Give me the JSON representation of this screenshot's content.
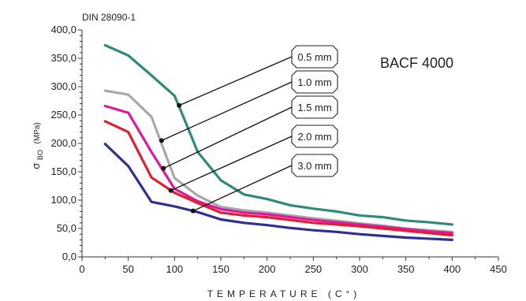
{
  "chart_data": {
    "type": "line",
    "title": "",
    "standard": "DIN 28090-1",
    "product": "BACF 4000",
    "xlabel": "TEMPERATURE (C°)",
    "ylabel": {
      "symbol": "σ",
      "subscript": "BO",
      "unit": "(MPa)"
    },
    "xlim": [
      0,
      450
    ],
    "ylim": [
      0,
      400
    ],
    "xticks": [
      "0",
      "50",
      "100",
      "150",
      "200",
      "250",
      "300",
      "350",
      "400",
      "450"
    ],
    "yticks": [
      "0,0",
      "50,0",
      "100,0",
      "150,0",
      "200,0",
      "250,0",
      "300,0",
      "350,0",
      "400,0"
    ],
    "grid": false,
    "legend": "annotations",
    "series": [
      {
        "name": "0.5 mm",
        "color": "#2f8a7a",
        "x": [
          25,
          50,
          75,
          100,
          110,
          125,
          150,
          175,
          200,
          225,
          250,
          275,
          300,
          325,
          350,
          375,
          400
        ],
        "y": [
          373,
          355,
          320,
          284,
          245,
          185,
          135,
          110,
          102,
          91,
          85,
          80,
          73,
          70,
          64,
          61,
          57
        ]
      },
      {
        "name": "1.0 mm",
        "color": "#a8a8a8",
        "x": [
          25,
          50,
          75,
          100,
          125,
          150,
          175,
          200,
          225,
          250,
          275,
          300,
          325,
          350,
          375,
          400
        ],
        "y": [
          293,
          286,
          247,
          139,
          108,
          88,
          82,
          78,
          73,
          68,
          64,
          59,
          55,
          50,
          47,
          44
        ]
      },
      {
        "name": "1.5 mm",
        "color": "#e0189e",
        "x": [
          25,
          50,
          75,
          100,
          125,
          150,
          175,
          200,
          225,
          250,
          275,
          300,
          325,
          350,
          375,
          400
        ],
        "y": [
          266,
          254,
          185,
          120,
          98,
          84,
          78,
          75,
          70,
          65,
          61,
          57,
          53,
          49,
          45,
          42
        ]
      },
      {
        "name": "2.0 mm",
        "color": "#e02030",
        "x": [
          25,
          50,
          75,
          100,
          125,
          150,
          175,
          200,
          225,
          250,
          275,
          300,
          325,
          350,
          375,
          400
        ],
        "y": [
          239,
          220,
          140,
          113,
          95,
          78,
          73,
          70,
          65,
          60,
          57,
          54,
          50,
          46,
          42,
          38
        ]
      },
      {
        "name": "3.0 mm",
        "color": "#2e2f92",
        "x": [
          25,
          50,
          75,
          100,
          125,
          150,
          175,
          200,
          225,
          250,
          275,
          300,
          325,
          350,
          375,
          400
        ],
        "y": [
          199,
          160,
          97,
          89,
          79,
          66,
          60,
          56,
          51,
          47,
          44,
          40,
          37,
          34,
          32,
          30
        ]
      }
    ],
    "annotations": [
      {
        "label": "0.5 mm",
        "series": "0.5 mm",
        "point": [
          105,
          267
        ]
      },
      {
        "label": "1.0 mm",
        "series": "1.0 mm",
        "point": [
          86,
          205
        ]
      },
      {
        "label": "1.5 mm",
        "series": "1.5 mm",
        "point": [
          88,
          156
        ]
      },
      {
        "label": "2.0 mm",
        "series": "2.0 mm",
        "point": [
          96,
          117
        ]
      },
      {
        "label": "3.0 mm",
        "series": "3.0 mm",
        "point": [
          120,
          81
        ]
      }
    ]
  }
}
